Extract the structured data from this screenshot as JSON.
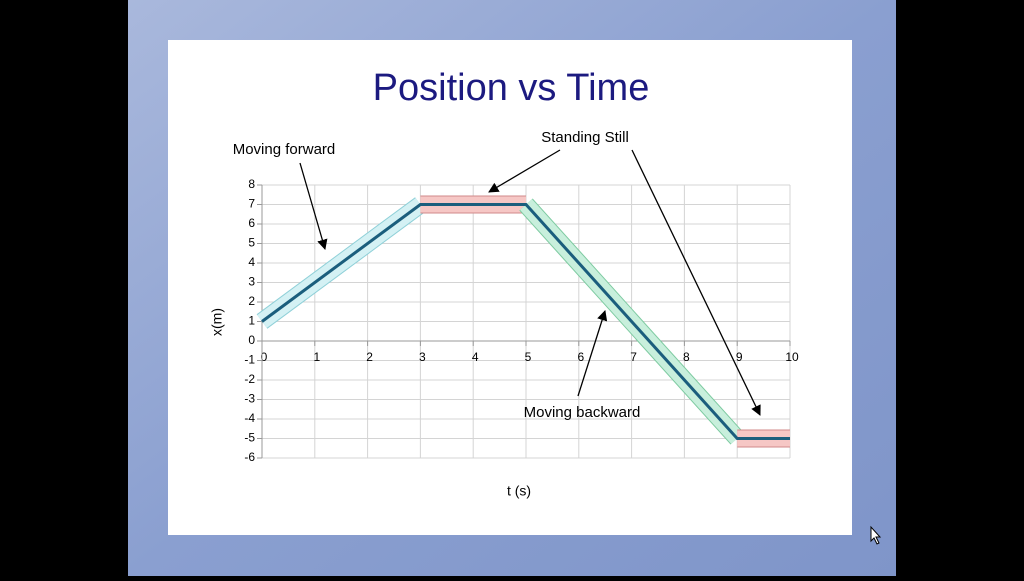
{
  "chart_data": {
    "type": "line",
    "title": "Position vs Time",
    "x_label": "t (s)",
    "y_label": "x(m)",
    "x": [
      0,
      3,
      5,
      9,
      10
    ],
    "series": [
      {
        "name": null,
        "color": "#1b5e7d",
        "values": [
          1,
          7,
          7,
          -5,
          -5
        ]
      }
    ],
    "xlim": [
      0,
      10
    ],
    "xticks": [
      0,
      1,
      2,
      3,
      4,
      5,
      6,
      7,
      8,
      9,
      10
    ],
    "ylim": [
      -6,
      8
    ],
    "yticks": [
      -6,
      -5,
      -4,
      -3,
      -2,
      -1,
      0,
      1,
      2,
      3,
      4,
      5,
      6,
      7,
      8
    ],
    "grid": true,
    "annotations": [
      "Moving forward",
      "Standing Still",
      "Moving backward"
    ]
  }
}
